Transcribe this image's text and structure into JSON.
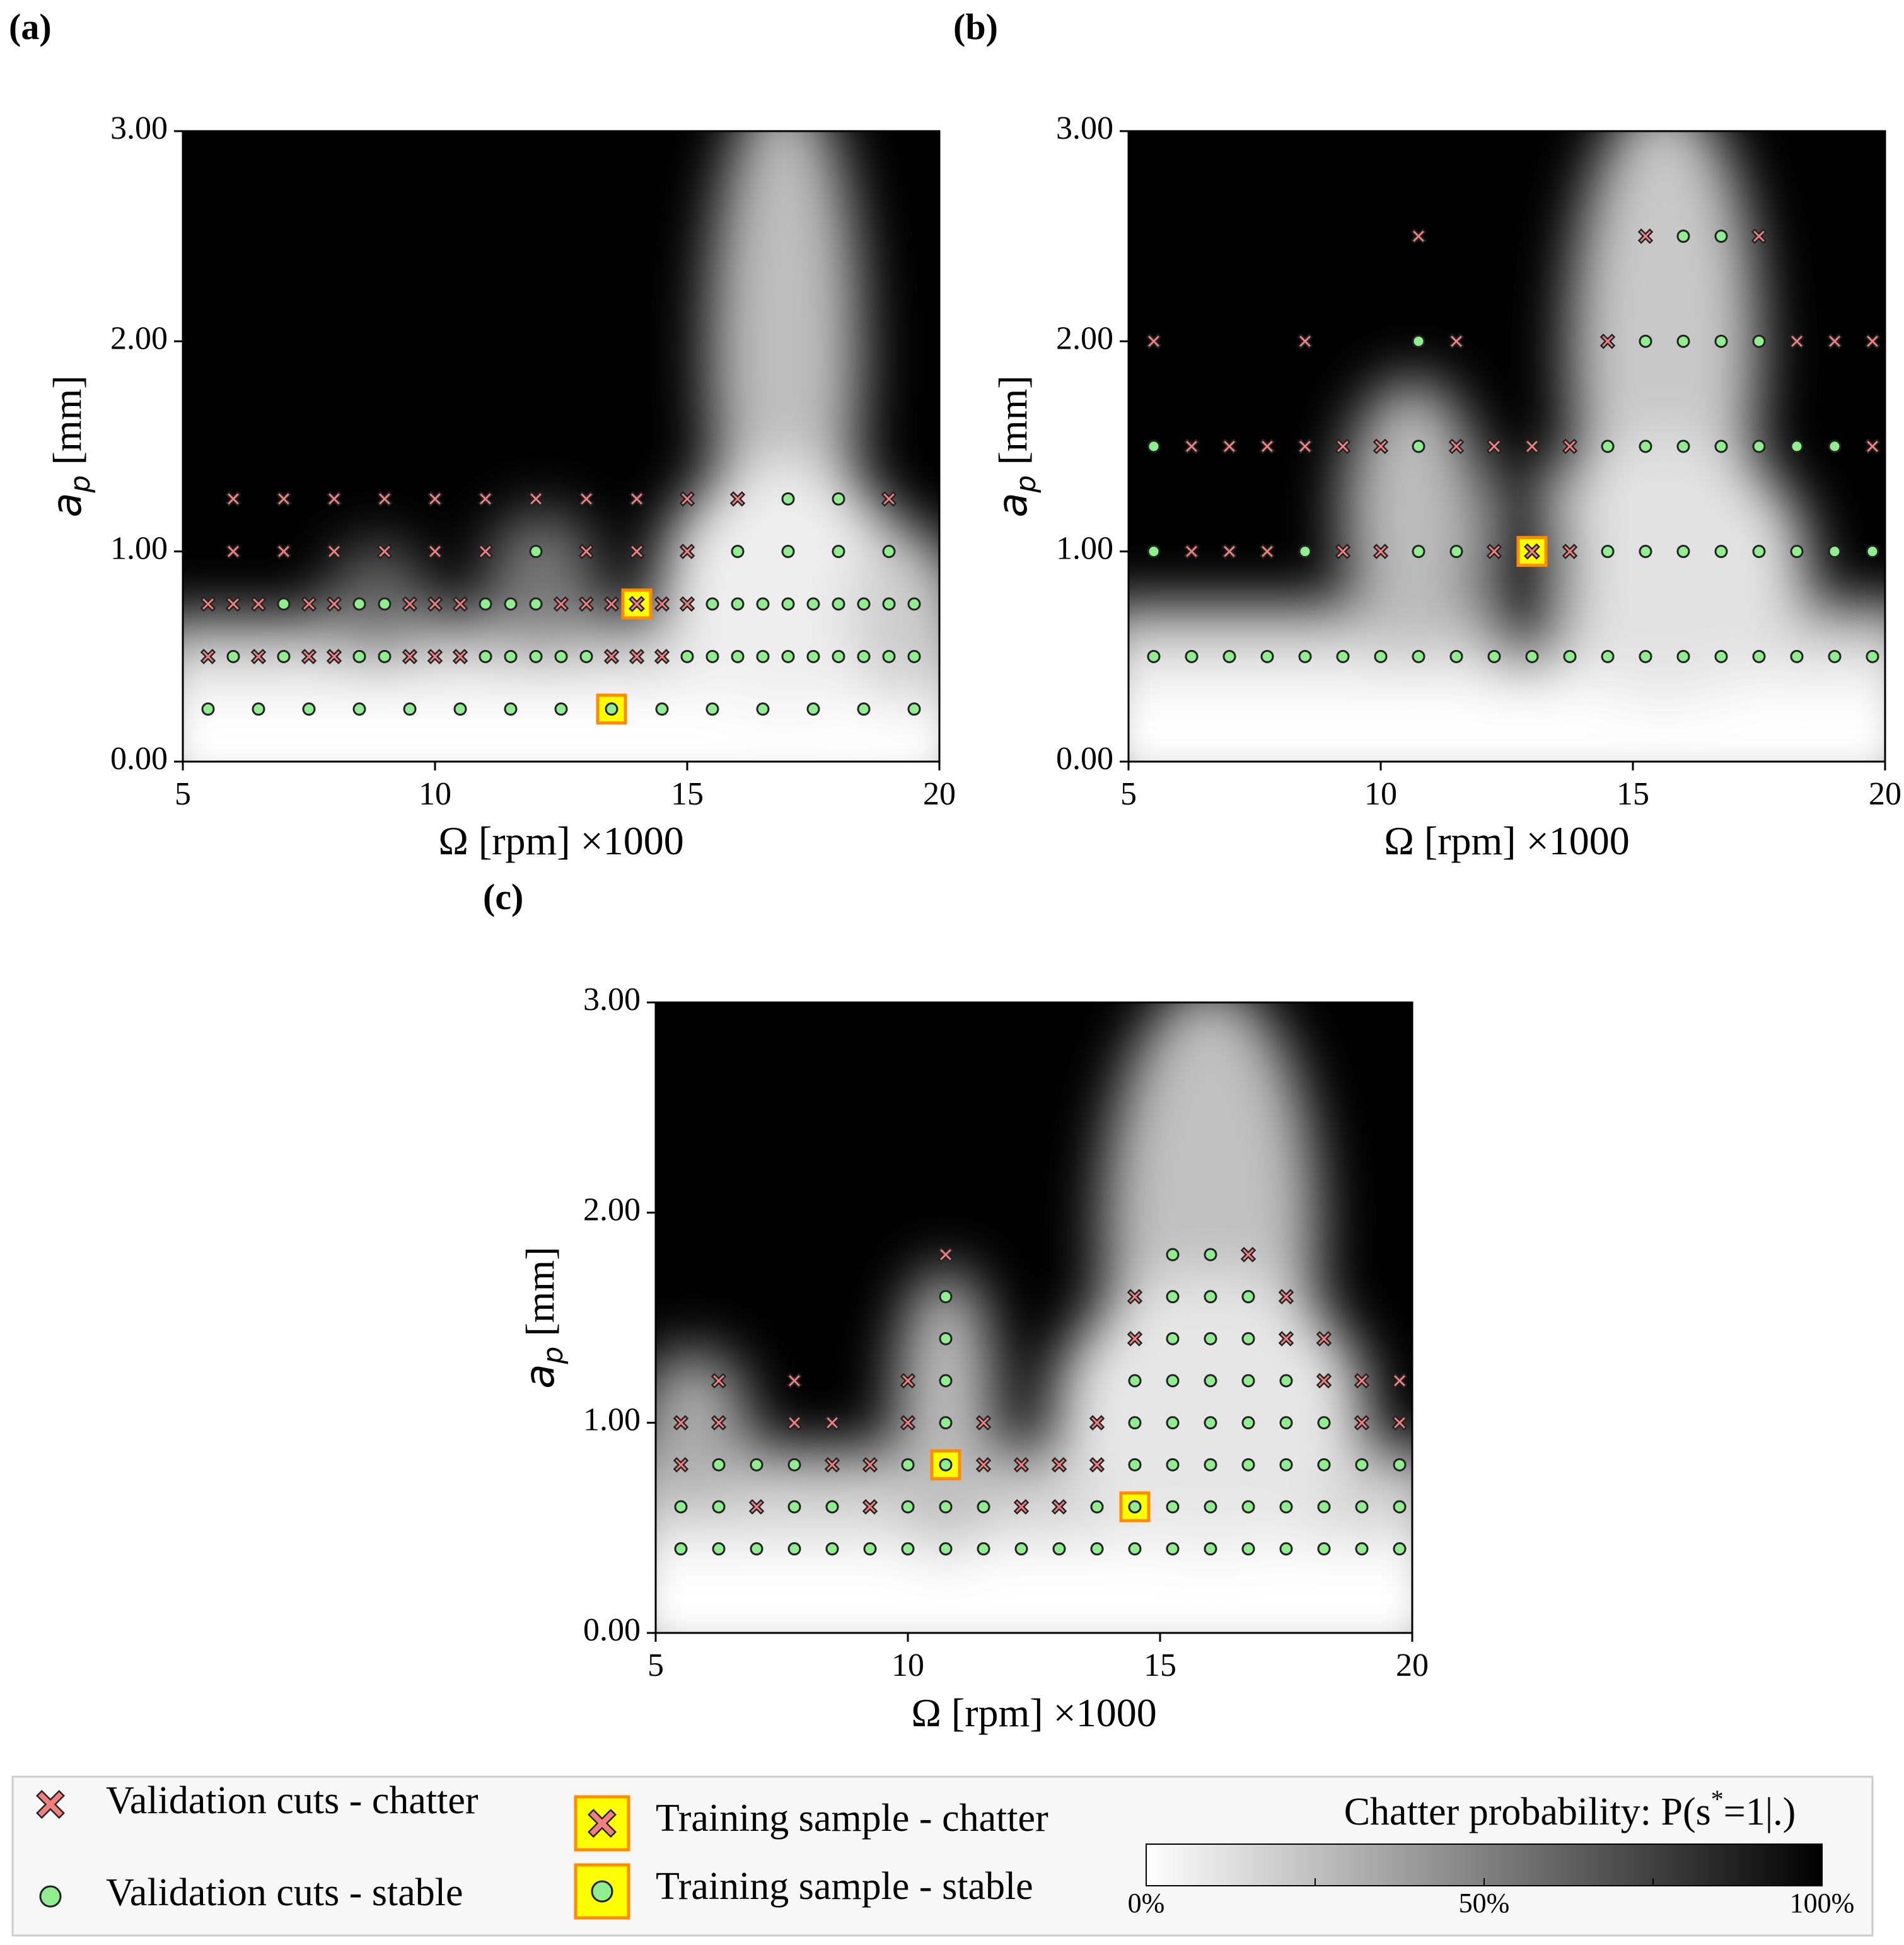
{
  "chart_data": [
    {
      "type": "scatter",
      "panel_label": "(a)",
      "xlabel": "Ω [rpm] ×1000",
      "ylabel_main": "a",
      "ylabel_sub": "p",
      "ylabel_unit": " [mm]",
      "xlim": [
        5,
        20
      ],
      "ylim": [
        0,
        3
      ],
      "xticks": [
        "5",
        "10",
        "15",
        "20"
      ],
      "yticks": [
        "0.00",
        "1.00",
        "2.00",
        "3.00"
      ],
      "background": "chatter-probability heatmap (white = 0%, black = 100%)",
      "validation_chatter": [
        [
          6,
          1.25
        ],
        [
          7,
          1.25
        ],
        [
          8,
          1.25
        ],
        [
          9,
          1.25
        ],
        [
          10,
          1.25
        ],
        [
          11,
          1.25
        ],
        [
          12,
          1.25
        ],
        [
          13,
          1.25
        ],
        [
          14,
          1.25
        ],
        [
          15,
          1.25
        ],
        [
          16,
          1.25
        ],
        [
          19,
          1.25
        ],
        [
          6,
          1.0
        ],
        [
          7,
          1.0
        ],
        [
          8,
          1.0
        ],
        [
          9,
          1.0
        ],
        [
          10,
          1.0
        ],
        [
          11,
          1.0
        ],
        [
          13,
          1.0
        ],
        [
          14,
          1.0
        ],
        [
          15,
          1.0
        ],
        [
          5.5,
          0.75
        ],
        [
          6,
          0.75
        ],
        [
          6.5,
          0.75
        ],
        [
          7.5,
          0.75
        ],
        [
          8,
          0.75
        ],
        [
          9.5,
          0.75
        ],
        [
          10,
          0.75
        ],
        [
          10.5,
          0.75
        ],
        [
          12.5,
          0.75
        ],
        [
          13,
          0.75
        ],
        [
          13.5,
          0.75
        ],
        [
          14.5,
          0.75
        ],
        [
          15,
          0.75
        ],
        [
          5.5,
          0.5
        ],
        [
          6.5,
          0.5
        ],
        [
          7.5,
          0.5
        ],
        [
          8,
          0.5
        ],
        [
          9.5,
          0.5
        ],
        [
          10,
          0.5
        ],
        [
          10.5,
          0.5
        ],
        [
          13.5,
          0.5
        ],
        [
          14,
          0.5
        ],
        [
          14.5,
          0.5
        ]
      ],
      "validation_stable": [
        [
          17,
          1.25
        ],
        [
          18,
          1.25
        ],
        [
          12,
          1.0
        ],
        [
          16,
          1.0
        ],
        [
          17,
          1.0
        ],
        [
          18,
          1.0
        ],
        [
          19,
          1.0
        ],
        [
          7,
          0.75
        ],
        [
          8.5,
          0.75
        ],
        [
          9,
          0.75
        ],
        [
          11,
          0.75
        ],
        [
          11.5,
          0.75
        ],
        [
          12,
          0.75
        ],
        [
          15.5,
          0.75
        ],
        [
          16,
          0.75
        ],
        [
          16.5,
          0.75
        ],
        [
          17,
          0.75
        ],
        [
          17.5,
          0.75
        ],
        [
          18,
          0.75
        ],
        [
          18.5,
          0.75
        ],
        [
          19,
          0.75
        ],
        [
          19.5,
          0.75
        ],
        [
          6,
          0.5
        ],
        [
          7,
          0.5
        ],
        [
          8.5,
          0.5
        ],
        [
          9,
          0.5
        ],
        [
          11,
          0.5
        ],
        [
          11.5,
          0.5
        ],
        [
          12,
          0.5
        ],
        [
          12.5,
          0.5
        ],
        [
          13,
          0.5
        ],
        [
          15,
          0.5
        ],
        [
          15.5,
          0.5
        ],
        [
          16,
          0.5
        ],
        [
          16.5,
          0.5
        ],
        [
          17,
          0.5
        ],
        [
          17.5,
          0.5
        ],
        [
          18,
          0.5
        ],
        [
          18.5,
          0.5
        ],
        [
          19,
          0.5
        ],
        [
          19.5,
          0.5
        ],
        [
          5.5,
          0.25
        ],
        [
          6.5,
          0.25
        ],
        [
          7.5,
          0.25
        ],
        [
          8.5,
          0.25
        ],
        [
          9.5,
          0.25
        ],
        [
          10.5,
          0.25
        ],
        [
          11.5,
          0.25
        ],
        [
          12.5,
          0.25
        ],
        [
          14.5,
          0.25
        ],
        [
          15.5,
          0.25
        ],
        [
          16.5,
          0.25
        ],
        [
          17.5,
          0.25
        ],
        [
          18.5,
          0.25
        ],
        [
          19.5,
          0.25
        ]
      ],
      "training_chatter": [
        [
          14,
          0.75
        ]
      ],
      "training_stable": [
        [
          13.5,
          0.25
        ]
      ]
    },
    {
      "type": "scatter",
      "panel_label": "(b)",
      "xlabel": "Ω [rpm] ×1000",
      "ylabel_main": "a",
      "ylabel_sub": "p",
      "ylabel_unit": " [mm]",
      "xlim": [
        5,
        20
      ],
      "ylim": [
        0,
        3
      ],
      "xticks": [
        "5",
        "10",
        "15",
        "20"
      ],
      "yticks": [
        "0.00",
        "1.00",
        "2.00",
        "3.00"
      ],
      "background": "chatter-probability heatmap (white = 0%, black = 100%)",
      "validation_chatter": [
        [
          10.75,
          2.5
        ],
        [
          15.25,
          2.5
        ],
        [
          17.5,
          2.5
        ],
        [
          5.5,
          2.0
        ],
        [
          8.5,
          2.0
        ],
        [
          11.5,
          2.0
        ],
        [
          14.5,
          2.0
        ],
        [
          18.25,
          2.0
        ],
        [
          19,
          2.0
        ],
        [
          19.75,
          2.0
        ],
        [
          6.25,
          1.5
        ],
        [
          7,
          1.5
        ],
        [
          7.75,
          1.5
        ],
        [
          8.5,
          1.5
        ],
        [
          9.25,
          1.5
        ],
        [
          10,
          1.5
        ],
        [
          11.5,
          1.5
        ],
        [
          12.25,
          1.5
        ],
        [
          13,
          1.5
        ],
        [
          13.75,
          1.5
        ],
        [
          19.75,
          1.5
        ],
        [
          6.25,
          1.0
        ],
        [
          7,
          1.0
        ],
        [
          7.75,
          1.0
        ],
        [
          9.25,
          1.0
        ],
        [
          10,
          1.0
        ],
        [
          12.25,
          1.0
        ],
        [
          13.75,
          1.0
        ]
      ],
      "validation_stable": [
        [
          16,
          2.5
        ],
        [
          16.75,
          2.5
        ],
        [
          10.75,
          2.0
        ],
        [
          15.25,
          2.0
        ],
        [
          16,
          2.0
        ],
        [
          16.75,
          2.0
        ],
        [
          17.5,
          2.0
        ],
        [
          5.5,
          1.5
        ],
        [
          10.75,
          1.5
        ],
        [
          14.5,
          1.5
        ],
        [
          15.25,
          1.5
        ],
        [
          16,
          1.5
        ],
        [
          16.75,
          1.5
        ],
        [
          17.5,
          1.5
        ],
        [
          18.25,
          1.5
        ],
        [
          19,
          1.5
        ],
        [
          5.5,
          1.0
        ],
        [
          8.5,
          1.0
        ],
        [
          10.75,
          1.0
        ],
        [
          11.5,
          1.0
        ],
        [
          14.5,
          1.0
        ],
        [
          15.25,
          1.0
        ],
        [
          16,
          1.0
        ],
        [
          16.75,
          1.0
        ],
        [
          17.5,
          1.0
        ],
        [
          18.25,
          1.0
        ],
        [
          19,
          1.0
        ],
        [
          19.75,
          1.0
        ],
        [
          5.5,
          0.5
        ],
        [
          6.25,
          0.5
        ],
        [
          7,
          0.5
        ],
        [
          7.75,
          0.5
        ],
        [
          8.5,
          0.5
        ],
        [
          9.25,
          0.5
        ],
        [
          10,
          0.5
        ],
        [
          10.75,
          0.5
        ],
        [
          11.5,
          0.5
        ],
        [
          12.25,
          0.5
        ],
        [
          13,
          0.5
        ],
        [
          13.75,
          0.5
        ],
        [
          14.5,
          0.5
        ],
        [
          15.25,
          0.5
        ],
        [
          16,
          0.5
        ],
        [
          16.75,
          0.5
        ],
        [
          17.5,
          0.5
        ],
        [
          18.25,
          0.5
        ],
        [
          19,
          0.5
        ],
        [
          19.75,
          0.5
        ]
      ],
      "training_chatter": [
        [
          13,
          1.0
        ]
      ],
      "training_stable": []
    },
    {
      "type": "scatter",
      "panel_label": "(c)",
      "xlabel": "Ω [rpm] ×1000",
      "ylabel_main": "a",
      "ylabel_sub": "p",
      "ylabel_unit": " [mm]",
      "xlim": [
        5,
        20
      ],
      "ylim": [
        0,
        3
      ],
      "xticks": [
        "5",
        "10",
        "15",
        "20"
      ],
      "yticks": [
        "0.00",
        "1.00",
        "2.00",
        "3.00"
      ],
      "background": "chatter-probability heatmap (white = 0%, black = 100%)",
      "validation_chatter": [
        [
          10.75,
          1.8
        ],
        [
          16.75,
          1.8
        ],
        [
          14.5,
          1.6
        ],
        [
          17.5,
          1.6
        ],
        [
          14.5,
          1.4
        ],
        [
          17.5,
          1.4
        ],
        [
          18.25,
          1.4
        ],
        [
          6.25,
          1.2
        ],
        [
          7.75,
          1.2
        ],
        [
          10,
          1.2
        ],
        [
          18.25,
          1.2
        ],
        [
          19,
          1.2
        ],
        [
          19.75,
          1.2
        ],
        [
          5.5,
          1.0
        ],
        [
          6.25,
          1.0
        ],
        [
          7.75,
          1.0
        ],
        [
          8.5,
          1.0
        ],
        [
          10,
          1.0
        ],
        [
          11.5,
          1.0
        ],
        [
          13.75,
          1.0
        ],
        [
          19,
          1.0
        ],
        [
          19.75,
          1.0
        ],
        [
          5.5,
          0.8
        ],
        [
          8.5,
          0.8
        ],
        [
          9.25,
          0.8
        ],
        [
          11.5,
          0.8
        ],
        [
          12.25,
          0.8
        ],
        [
          13,
          0.8
        ],
        [
          13.75,
          0.8
        ],
        [
          7,
          0.6
        ],
        [
          9.25,
          0.6
        ],
        [
          12.25,
          0.6
        ],
        [
          13,
          0.6
        ]
      ],
      "validation_stable": [
        [
          15.25,
          1.8
        ],
        [
          16,
          1.8
        ],
        [
          10.75,
          1.6
        ],
        [
          15.25,
          1.6
        ],
        [
          16,
          1.6
        ],
        [
          16.75,
          1.6
        ],
        [
          10.75,
          1.4
        ],
        [
          15.25,
          1.4
        ],
        [
          16,
          1.4
        ],
        [
          16.75,
          1.4
        ],
        [
          10.75,
          1.2
        ],
        [
          14.5,
          1.2
        ],
        [
          15.25,
          1.2
        ],
        [
          16,
          1.2
        ],
        [
          16.75,
          1.2
        ],
        [
          17.5,
          1.2
        ],
        [
          10.75,
          1.0
        ],
        [
          14.5,
          1.0
        ],
        [
          15.25,
          1.0
        ],
        [
          16,
          1.0
        ],
        [
          16.75,
          1.0
        ],
        [
          17.5,
          1.0
        ],
        [
          18.25,
          1.0
        ],
        [
          6.25,
          0.8
        ],
        [
          7,
          0.8
        ],
        [
          7.75,
          0.8
        ],
        [
          10,
          0.8
        ],
        [
          14.5,
          0.8
        ],
        [
          15.25,
          0.8
        ],
        [
          16,
          0.8
        ],
        [
          16.75,
          0.8
        ],
        [
          17.5,
          0.8
        ],
        [
          18.25,
          0.8
        ],
        [
          19,
          0.8
        ],
        [
          19.75,
          0.8
        ],
        [
          5.5,
          0.6
        ],
        [
          6.25,
          0.6
        ],
        [
          7.75,
          0.6
        ],
        [
          8.5,
          0.6
        ],
        [
          10,
          0.6
        ],
        [
          10.75,
          0.6
        ],
        [
          11.5,
          0.6
        ],
        [
          13.75,
          0.6
        ],
        [
          15.25,
          0.6
        ],
        [
          16,
          0.6
        ],
        [
          16.75,
          0.6
        ],
        [
          17.5,
          0.6
        ],
        [
          18.25,
          0.6
        ],
        [
          19,
          0.6
        ],
        [
          19.75,
          0.6
        ],
        [
          5.5,
          0.4
        ],
        [
          6.25,
          0.4
        ],
        [
          7,
          0.4
        ],
        [
          7.75,
          0.4
        ],
        [
          8.5,
          0.4
        ],
        [
          9.25,
          0.4
        ],
        [
          10,
          0.4
        ],
        [
          10.75,
          0.4
        ],
        [
          11.5,
          0.4
        ],
        [
          12.25,
          0.4
        ],
        [
          13,
          0.4
        ],
        [
          13.75,
          0.4
        ],
        [
          14.5,
          0.4
        ],
        [
          15.25,
          0.4
        ],
        [
          16,
          0.4
        ],
        [
          16.75,
          0.4
        ],
        [
          17.5,
          0.4
        ],
        [
          18.25,
          0.4
        ],
        [
          19,
          0.4
        ],
        [
          19.75,
          0.4
        ]
      ],
      "training_chatter": [],
      "training_stable": [
        [
          10.75,
          0.8
        ],
        [
          14.5,
          0.6
        ]
      ]
    }
  ],
  "legend": {
    "validation_chatter": "Validation cuts - chatter",
    "validation_stable": "Validation cuts - stable",
    "training_chatter": "Training sample - chatter",
    "training_stable": "Training sample - stable",
    "colorbar_title": "Chatter probability: P(s",
    "colorbar_title_sup": "*",
    "colorbar_title_end": "=1|.)",
    "colorbar_ticks": [
      "0%",
      "50%",
      "100%"
    ]
  },
  "colors": {
    "chatter_fill": "#f08080",
    "stable_fill": "#90ee90",
    "marker_edge": "#222222",
    "training_box_fill": "#ffff00",
    "training_box_edge": "#ff8c00"
  }
}
